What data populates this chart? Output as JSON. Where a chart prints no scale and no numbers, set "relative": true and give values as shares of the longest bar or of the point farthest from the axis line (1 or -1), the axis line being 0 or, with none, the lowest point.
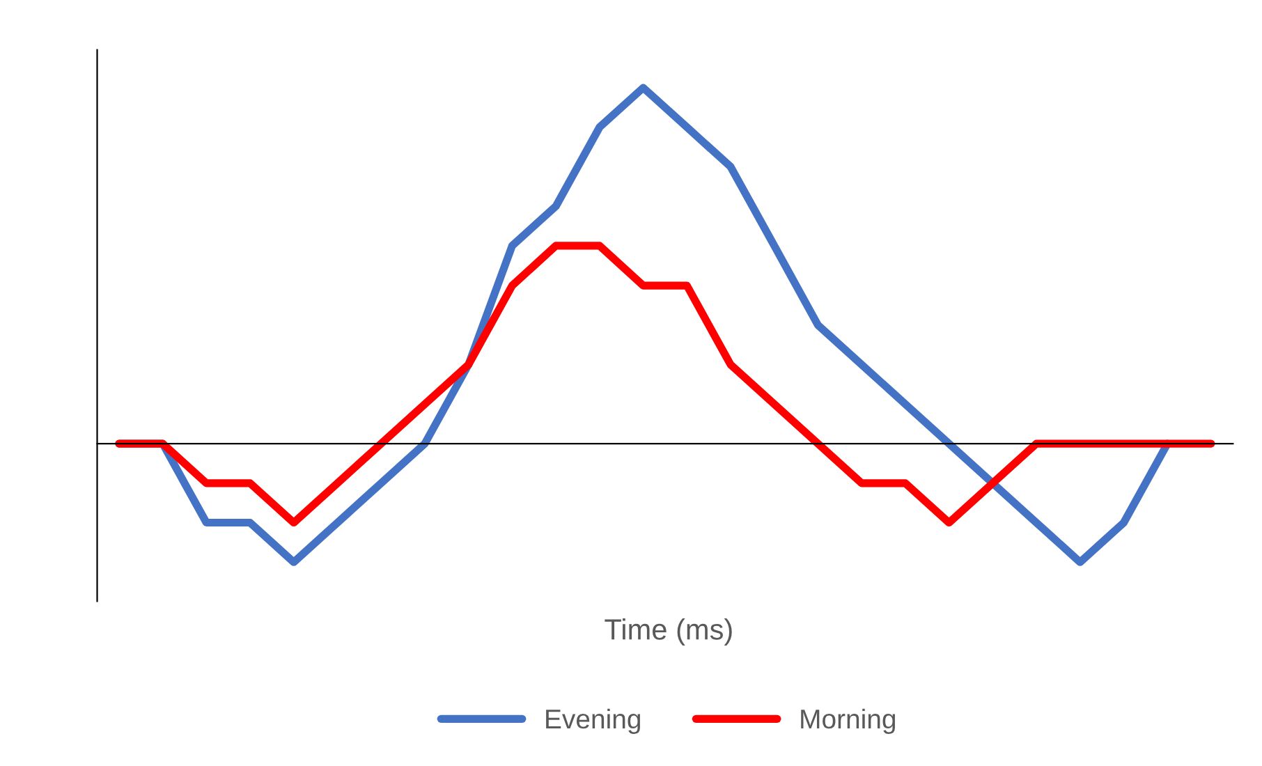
{
  "chart_data": {
    "type": "line",
    "relative": true,
    "xlabel": "Time (ms)",
    "legend": "bottom",
    "grid": false,
    "marker": "none",
    "line_style": "solid",
    "categories": [
      null,
      null,
      null,
      null,
      null,
      null,
      null,
      null,
      null,
      null,
      null,
      null,
      null,
      null,
      null,
      null,
      null,
      null,
      null,
      null,
      null,
      null,
      null,
      null,
      null,
      null
    ],
    "series": [
      {
        "name": "Evening",
        "color": "#4472c4",
        "values": [
          0,
          0,
          -0.222,
          -0.222,
          -0.333,
          -0.222,
          -0.111,
          0,
          0.222,
          0.556,
          0.667,
          0.889,
          1,
          0.889,
          0.778,
          0.556,
          0.333,
          0.222,
          0.111,
          0,
          -0.111,
          -0.222,
          -0.333,
          -0.222,
          0,
          null
        ]
      },
      {
        "name": "Morning",
        "color": "#ff0000",
        "values": [
          0,
          0,
          -0.111,
          -0.111,
          -0.222,
          -0.111,
          0,
          0.111,
          0.222,
          0.444,
          0.556,
          0.556,
          0.444,
          0.444,
          0.222,
          0.111,
          0,
          -0.111,
          -0.111,
          -0.222,
          -0.111,
          0,
          0,
          0,
          0,
          0
        ]
      }
    ]
  }
}
